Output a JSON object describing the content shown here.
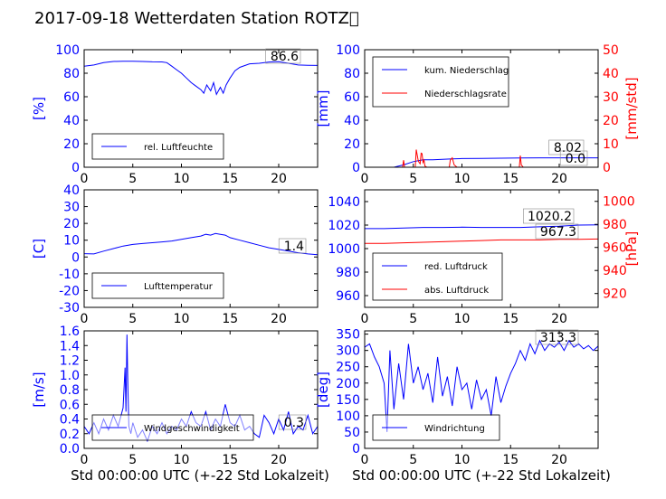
{
  "figure_title": "2017-09-18 Wetterdaten Station ROTZ\u0000",
  "colors": {
    "left_axis": "#0000ff",
    "right_axis": "#ff0000",
    "humidity": "#0000ff",
    "rain_cum": "#0000ff",
    "rain_rate": "#ff0000",
    "temperature": "#0000ff",
    "pressure_red": "#0000ff",
    "pressure_abs": "#ff0000",
    "wind_speed": "#0000ff",
    "wind_dir": "#0000ff"
  },
  "chart_data": [
    {
      "id": "humidity",
      "type": "line",
      "xlim": [
        0,
        24
      ],
      "ylim": [
        0,
        100
      ],
      "xticks": [
        0,
        5,
        10,
        15,
        20
      ],
      "yticks": [
        0,
        20,
        40,
        60,
        80,
        100
      ],
      "ylabel": "[%]",
      "legend": {
        "placement": "lower-left",
        "entries": [
          "rel. Luftfeuchte"
        ]
      },
      "annotations": [
        "86.6"
      ],
      "series": [
        {
          "name": "rel. Luftfeuchte",
          "color": "#0000ff",
          "x": [
            0,
            1,
            2,
            3,
            4,
            5,
            6,
            7,
            8,
            8.5,
            9,
            9.5,
            10,
            10.5,
            11,
            11.5,
            12,
            12.3,
            12.6,
            13,
            13.3,
            13.6,
            14,
            14.3,
            14.6,
            15,
            15.5,
            16,
            17,
            18,
            19,
            20,
            21,
            22,
            23,
            24
          ],
          "y": [
            86,
            87,
            89,
            90,
            90.2,
            90.2,
            90,
            89.7,
            89.6,
            89,
            86,
            83,
            80,
            76,
            72,
            69,
            66,
            63,
            70,
            65,
            72,
            62,
            68,
            63,
            70,
            76,
            82,
            85,
            88,
            88.5,
            89.5,
            89.8,
            88.5,
            87,
            86.8,
            86.6
          ]
        }
      ]
    },
    {
      "id": "rain",
      "type": "line",
      "xlim": [
        0,
        24
      ],
      "ylim": [
        0,
        100
      ],
      "ylim_right": [
        0,
        50
      ],
      "xticks": [
        0,
        5,
        10,
        15,
        20
      ],
      "yticks": [
        0,
        20,
        40,
        60,
        80,
        100
      ],
      "yticks_right": [
        0,
        10,
        20,
        30,
        40,
        50
      ],
      "ylabel": "[mm]",
      "ylabel_right": "[mm/std]",
      "legend": {
        "placement": "upper-left",
        "entries": [
          "kum. Niederschlag",
          "Niederschlagsrate"
        ]
      },
      "annotations": [
        "8.02",
        "0.0"
      ],
      "series": [
        {
          "name": "kum. Niederschlag",
          "color": "#0000ff",
          "axis": "left",
          "x": [
            0,
            3,
            4,
            5,
            6,
            7,
            9,
            10,
            12,
            16,
            18,
            20,
            22,
            24
          ],
          "y": [
            0,
            0,
            2,
            4.8,
            6.3,
            6.4,
            7.1,
            7.4,
            7.5,
            7.9,
            8.0,
            8.0,
            8.02,
            8.02
          ]
        },
        {
          "name": "Niederschlagsrate",
          "color": "#ff0000",
          "axis": "right",
          "x": [
            0,
            3.9,
            4.0,
            4.1,
            5.2,
            5.3,
            5.5,
            5.6,
            5.7,
            5.8,
            5.9,
            6.0,
            6.1,
            6.2,
            6.4,
            8.7,
            8.8,
            9.0,
            9.2,
            9.5,
            15.9,
            16.0,
            16.1,
            16.3,
            24
          ],
          "y": [
            0,
            0,
            3,
            0,
            0,
            7.5,
            3,
            2,
            1.5,
            6,
            5.8,
            2,
            3,
            0.5,
            0,
            0,
            3,
            4,
            1,
            0,
            0,
            5,
            1,
            0,
            0
          ]
        }
      ]
    },
    {
      "id": "temperature",
      "type": "line",
      "xlim": [
        0,
        24
      ],
      "ylim": [
        -30,
        40
      ],
      "xticks": [
        0,
        5,
        10,
        15,
        20
      ],
      "yticks": [
        -30,
        -20,
        -10,
        0,
        10,
        20,
        30,
        40
      ],
      "ylabel": "[C]",
      "legend": {
        "placement": "lower-left",
        "entries": [
          "Lufttemperatur"
        ]
      },
      "annotations": [
        "1.4"
      ],
      "series": [
        {
          "name": "Lufttemperatur",
          "color": "#0000ff",
          "x": [
            0,
            1,
            2,
            3,
            4,
            5,
            6,
            7,
            8,
            9,
            10,
            11,
            12,
            12.5,
            13,
            13.5,
            14,
            14.5,
            15,
            16,
            17,
            18,
            19,
            20,
            21,
            22,
            23,
            24
          ],
          "y": [
            2,
            1.8,
            3.5,
            5,
            6.5,
            7.5,
            8,
            8.5,
            9,
            9.5,
            10.5,
            11.5,
            12.5,
            13.5,
            13,
            14,
            13.5,
            13,
            11.5,
            10,
            8.5,
            7,
            5.5,
            4.5,
            3.5,
            2.5,
            1.8,
            1.4
          ]
        }
      ]
    },
    {
      "id": "pressure",
      "type": "line",
      "xlim": [
        0,
        24
      ],
      "ylim": [
        950,
        1050
      ],
      "ylim_right": [
        908,
        1010
      ],
      "xticks": [
        0,
        5,
        10,
        15,
        20
      ],
      "yticks": [
        960,
        980,
        1000,
        1020,
        1040
      ],
      "yticks_right": [
        920,
        940,
        960,
        980,
        1000
      ],
      "ylabel_right": "[hPa]",
      "legend": {
        "placement": "lower-left",
        "entries": [
          "red. Luftdruck",
          "abs. Luftdruck"
        ]
      },
      "annotations": [
        "1020.2",
        "967.3"
      ],
      "series": [
        {
          "name": "red. Luftdruck",
          "color": "#0000ff",
          "axis": "left",
          "x": [
            0,
            2,
            4,
            6,
            8,
            10,
            12,
            14,
            16,
            18,
            20,
            22,
            24
          ],
          "y": [
            1017,
            1017,
            1017.5,
            1018,
            1018,
            1018.2,
            1018,
            1018,
            1018,
            1018.5,
            1019,
            1020,
            1020.2
          ]
        },
        {
          "name": "abs. Luftdruck",
          "color": "#ff0000",
          "axis": "right",
          "x": [
            0,
            2,
            4,
            6,
            8,
            10,
            12,
            14,
            16,
            18,
            20,
            22,
            24
          ],
          "y": [
            963.5,
            963.5,
            964,
            964.5,
            965,
            965.5,
            966,
            966.5,
            966.5,
            966.5,
            967,
            967,
            967.3
          ]
        }
      ]
    },
    {
      "id": "wind_speed",
      "type": "line",
      "xlim": [
        0,
        24
      ],
      "ylim": [
        0,
        1.6
      ],
      "xticks": [
        0,
        5,
        10,
        15,
        20
      ],
      "yticks": [
        0,
        0.2,
        0.4,
        0.6,
        0.8,
        1.0,
        1.2,
        1.4,
        1.6
      ],
      "ylabel": "[m/s]",
      "legend": {
        "placement": "lower-left",
        "entries": [
          "Windgeschwindigkeit"
        ]
      },
      "annotations": [
        "0.3"
      ],
      "series": [
        {
          "name": "Windgeschwindigkeit",
          "color": "#0000ff",
          "x": [
            0,
            0.5,
            1,
            1.5,
            2,
            2.5,
            3,
            3.5,
            4,
            4.2,
            4.3,
            4.4,
            4.5,
            4.6,
            4.8,
            5,
            5.5,
            6,
            6.5,
            7,
            7.5,
            8,
            8.5,
            9,
            9.5,
            10,
            10.5,
            11,
            11.5,
            12,
            12.5,
            13,
            13.5,
            14,
            14.5,
            15,
            15.5,
            16,
            16.5,
            17,
            17.5,
            18,
            18.5,
            19,
            19.5,
            20,
            20.5,
            21,
            21.5,
            22,
            22.5,
            23,
            23.5,
            24
          ],
          "y": [
            0.3,
            0.2,
            0.35,
            0.2,
            0.4,
            0.25,
            0.45,
            0.3,
            0.55,
            1.1,
            0.5,
            1.55,
            0.8,
            0.3,
            0.2,
            0.35,
            0.15,
            0.25,
            0.1,
            0.3,
            0.2,
            0.35,
            0.2,
            0.3,
            0.25,
            0.4,
            0.3,
            0.5,
            0.35,
            0.3,
            0.5,
            0.25,
            0.4,
            0.3,
            0.6,
            0.35,
            0.3,
            0.45,
            0.25,
            0.3,
            0.2,
            0.15,
            0.45,
            0.35,
            0.2,
            0.4,
            0.25,
            0.5,
            0.2,
            0.3,
            0.25,
            0.45,
            0.2,
            0.3
          ]
        }
      ]
    },
    {
      "id": "wind_dir",
      "type": "line",
      "xlim": [
        0,
        24
      ],
      "ylim": [
        0,
        360
      ],
      "xticks": [
        0,
        5,
        10,
        15,
        20
      ],
      "yticks": [
        0,
        50,
        100,
        150,
        200,
        250,
        300,
        350
      ],
      "ylabel": "[deg]",
      "legend": {
        "placement": "lower-left",
        "entries": [
          "Windrichtung"
        ]
      },
      "annotations": [
        "313.3"
      ],
      "series": [
        {
          "name": "Windrichtung",
          "color": "#0000ff",
          "x": [
            0,
            0.5,
            1,
            1.5,
            2,
            2.3,
            2.6,
            3,
            3.5,
            4,
            4.5,
            5,
            5.5,
            6,
            6.5,
            7,
            7.5,
            8,
            8.5,
            9,
            9.5,
            10,
            10.5,
            11,
            11.5,
            12,
            12.5,
            13,
            13.5,
            14,
            14.5,
            15,
            15.5,
            16,
            16.5,
            17,
            17.5,
            18,
            18.5,
            19,
            19.5,
            20,
            20.5,
            21,
            21.5,
            22,
            22.5,
            23,
            23.5,
            24
          ],
          "y": [
            310,
            320,
            280,
            250,
            200,
            50,
            300,
            120,
            260,
            150,
            320,
            200,
            250,
            180,
            230,
            140,
            280,
            160,
            220,
            130,
            250,
            180,
            200,
            120,
            210,
            150,
            180,
            100,
            220,
            140,
            190,
            230,
            260,
            300,
            270,
            320,
            290,
            330,
            300,
            320,
            310,
            325,
            300,
            330,
            310,
            320,
            305,
            315,
            300,
            313.3
          ]
        }
      ]
    }
  ],
  "axis_texts": {
    "xlabel_bottom": "Std 00:00:00 UTC (+-22 Std Lokalzeit)"
  }
}
